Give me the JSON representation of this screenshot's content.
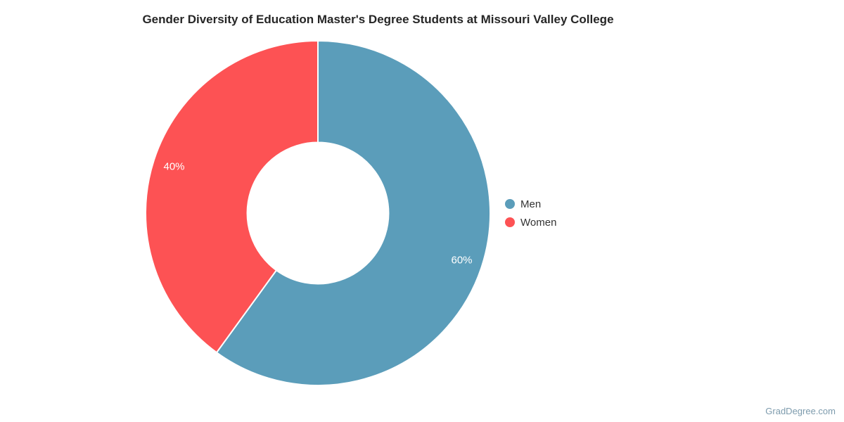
{
  "title": "Gender Diversity of Education Master's Degree Students at Missouri Valley College",
  "watermark": "GradDegree.com",
  "chart_data": {
    "type": "pie",
    "subtype": "donut",
    "title": "Gender Diversity of Education Master's Degree Students at Missouri Valley College",
    "labels": [
      "Men",
      "Women"
    ],
    "values": [
      60,
      40
    ],
    "unit": "%",
    "data_labels": [
      "60%",
      "40%"
    ],
    "colors": [
      "#5b9dba",
      "#fd5254"
    ],
    "start_angle_deg": 0,
    "direction": "clockwise",
    "inner_radius_ratio": 0.41,
    "label_color": "#ffffff",
    "slice_border_color": "#ffffff",
    "legend_position": "right",
    "grid": false
  },
  "legend": {
    "items": [
      {
        "label": "Men",
        "color": "#5b9dba"
      },
      {
        "label": "Women",
        "color": "#fd5254"
      }
    ]
  }
}
